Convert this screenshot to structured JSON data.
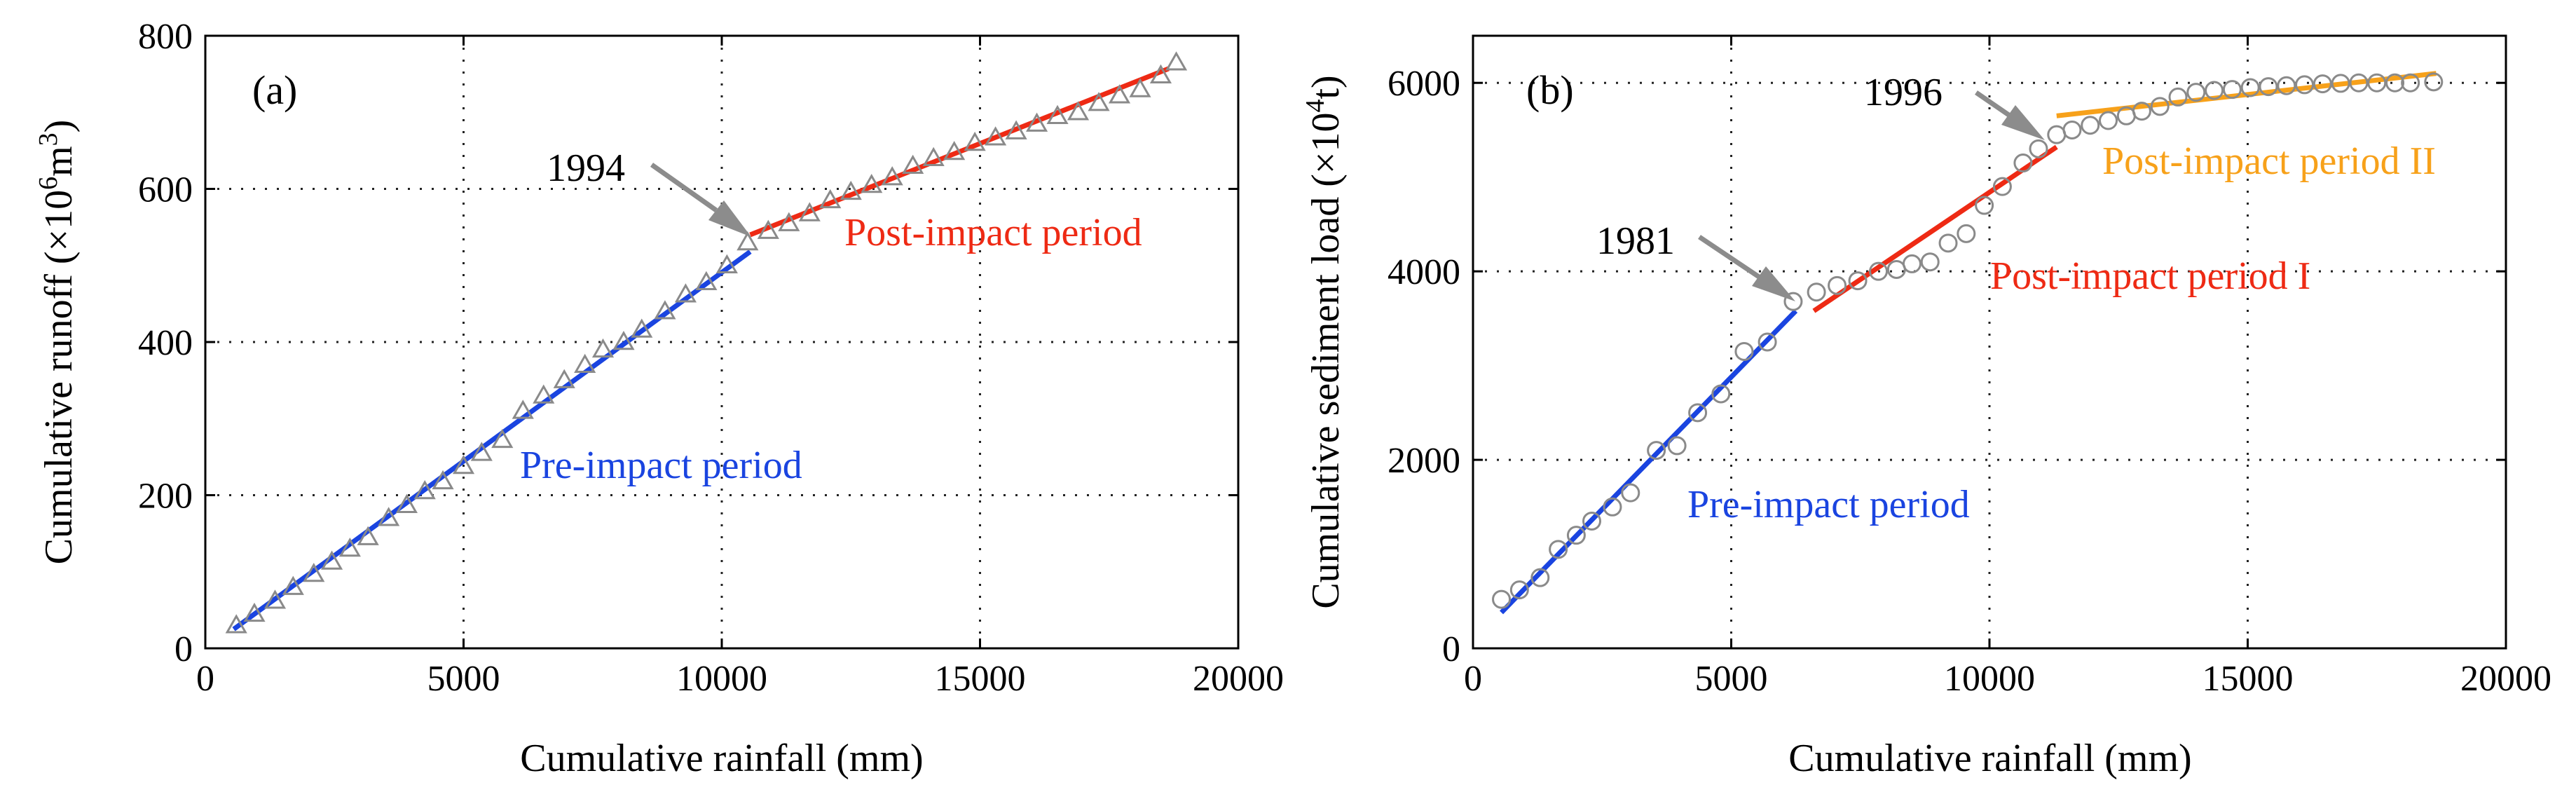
{
  "chart_data": [
    {
      "type": "scatter",
      "panel_label": "(a)",
      "xlabel": "Cumulative rainfall (mm)",
      "ylabel_main": "Cumulative runoff (×10",
      "ylabel_sup": "6",
      "ylabel_unit": "m",
      "ylabel_sup2": "3",
      "ylabel_end": ")",
      "xlim": [
        0,
        20000
      ],
      "ylim": [
        0,
        800
      ],
      "xticks": [
        "0",
        "5000",
        "10000",
        "15000",
        "20000"
      ],
      "yticks": [
        "0",
        "200",
        "400",
        "600",
        "800"
      ],
      "xtick_values": [
        0,
        5000,
        10000,
        15000,
        20000
      ],
      "ytick_values": [
        0,
        200,
        400,
        600,
        800
      ],
      "grid": true,
      "marker": "triangle",
      "marker_color": "#8a8a8a",
      "points": [
        [
          600,
          30
        ],
        [
          950,
          45
        ],
        [
          1350,
          62
        ],
        [
          1700,
          80
        ],
        [
          2100,
          97
        ],
        [
          2450,
          113
        ],
        [
          2800,
          130
        ],
        [
          3150,
          145
        ],
        [
          3550,
          170
        ],
        [
          3900,
          187
        ],
        [
          4250,
          205
        ],
        [
          4600,
          218
        ],
        [
          5000,
          238
        ],
        [
          5350,
          255
        ],
        [
          5750,
          272
        ],
        [
          6150,
          310
        ],
        [
          6550,
          330
        ],
        [
          6950,
          350
        ],
        [
          7350,
          370
        ],
        [
          7700,
          390
        ],
        [
          8100,
          400
        ],
        [
          8450,
          416
        ],
        [
          8900,
          440
        ],
        [
          9300,
          462
        ],
        [
          9700,
          478
        ],
        [
          10100,
          500
        ],
        [
          10500,
          530
        ],
        [
          10900,
          545
        ],
        [
          11300,
          555
        ],
        [
          11700,
          568
        ],
        [
          12100,
          585
        ],
        [
          12500,
          596
        ],
        [
          12900,
          605
        ],
        [
          13300,
          615
        ],
        [
          13700,
          630
        ],
        [
          14100,
          640
        ],
        [
          14500,
          648
        ],
        [
          14900,
          660
        ],
        [
          15300,
          667
        ],
        [
          15700,
          675
        ],
        [
          16100,
          685
        ],
        [
          16500,
          695
        ],
        [
          16900,
          700
        ],
        [
          17300,
          712
        ],
        [
          17700,
          722
        ],
        [
          18100,
          730
        ],
        [
          18500,
          748
        ],
        [
          18800,
          765
        ]
      ],
      "fits": [
        {
          "name": "Pre-impact period",
          "color": "#1a44e0",
          "x": [
            550,
            10550
          ],
          "y": [
            25,
            518
          ]
        },
        {
          "name": "Post-impact period",
          "color": "#ee2a14",
          "x": [
            10550,
            18650
          ],
          "y": [
            540,
            757
          ]
        }
      ],
      "annotations": [
        {
          "id": "year",
          "text": "1994",
          "color": "#000000"
        },
        {
          "id": "fit0",
          "text": "Pre-impact period",
          "color": "#1a44e0"
        },
        {
          "id": "fit1",
          "text": "Post-impact period",
          "color": "#ee2a14"
        }
      ],
      "arrow": {
        "target": [
          10500,
          530
        ],
        "color": "#8c8c8c"
      }
    },
    {
      "type": "scatter",
      "panel_label": "(b)",
      "xlabel": "Cumulative rainfall (mm)",
      "ylabel_main": "Cumulative sediment load (×10",
      "ylabel_sup": "4",
      "ylabel_unit": "t",
      "ylabel_sup2": "",
      "ylabel_end": ")",
      "xlim": [
        0,
        20000
      ],
      "ylim": [
        0,
        6500
      ],
      "xticks": [
        "0",
        "5000",
        "10000",
        "15000",
        "20000"
      ],
      "yticks": [
        "0",
        "2000",
        "4000",
        "6000"
      ],
      "xtick_values": [
        0,
        5000,
        10000,
        15000,
        20000
      ],
      "ytick_values": [
        0,
        2000,
        4000,
        6000
      ],
      "grid": true,
      "marker": "circle",
      "marker_color": "#8a8a8a",
      "points": [
        [
          550,
          520
        ],
        [
          900,
          620
        ],
        [
          1300,
          750
        ],
        [
          1650,
          1050
        ],
        [
          2000,
          1200
        ],
        [
          2300,
          1350
        ],
        [
          2700,
          1500
        ],
        [
          3050,
          1650
        ],
        [
          3550,
          2100
        ],
        [
          3950,
          2150
        ],
        [
          4350,
          2500
        ],
        [
          4800,
          2700
        ],
        [
          5250,
          3150
        ],
        [
          5700,
          3250
        ],
        [
          6200,
          3680
        ],
        [
          6650,
          3780
        ],
        [
          7050,
          3850
        ],
        [
          7450,
          3900
        ],
        [
          7850,
          4000
        ],
        [
          8200,
          4020
        ],
        [
          8500,
          4080
        ],
        [
          8850,
          4100
        ],
        [
          9200,
          4300
        ],
        [
          9550,
          4400
        ],
        [
          9900,
          4700
        ],
        [
          10250,
          4900
        ],
        [
          10650,
          5150
        ],
        [
          10950,
          5300
        ],
        [
          11300,
          5450
        ],
        [
          11600,
          5500
        ],
        [
          11950,
          5550
        ],
        [
          12300,
          5600
        ],
        [
          12650,
          5650
        ],
        [
          12950,
          5700
        ],
        [
          13300,
          5750
        ],
        [
          13650,
          5850
        ],
        [
          14000,
          5900
        ],
        [
          14350,
          5920
        ],
        [
          14700,
          5930
        ],
        [
          15050,
          5950
        ],
        [
          15400,
          5960
        ],
        [
          15750,
          5970
        ],
        [
          16100,
          5980
        ],
        [
          16450,
          5990
        ],
        [
          16800,
          5995
        ],
        [
          17150,
          6000
        ],
        [
          17500,
          6000
        ],
        [
          17850,
          6000
        ],
        [
          18150,
          6000
        ],
        [
          18600,
          6010
        ]
      ],
      "fits": [
        {
          "name": "Pre-impact period",
          "color": "#1a44e0",
          "x": [
            550,
            6250
          ],
          "y": [
            380,
            3580
          ]
        },
        {
          "name": "Post-impact period I",
          "color": "#ee2a14",
          "x": [
            6600,
            11300
          ],
          "y": [
            3580,
            5320
          ]
        },
        {
          "name": "Post-impact period II",
          "color": "#f7a11a",
          "x": [
            11300,
            18650
          ],
          "y": [
            5650,
            6100
          ]
        }
      ],
      "annotations": [
        {
          "id": "year1",
          "text": "1981",
          "color": "#000000"
        },
        {
          "id": "year2",
          "text": "1996",
          "color": "#000000"
        },
        {
          "id": "fit0",
          "text": "Pre-impact period",
          "color": "#1a44e0"
        },
        {
          "id": "fit1",
          "text": "Post-impact period I",
          "color": "#ee2a14"
        },
        {
          "id": "fit2",
          "text": "Post-impact period II",
          "color": "#f7a11a"
        }
      ],
      "arrows": [
        {
          "target": [
            6150,
            3700
          ],
          "color": "#8c8c8c"
        },
        {
          "target": [
            11250,
            5470
          ],
          "color": "#8c8c8c"
        }
      ]
    }
  ]
}
